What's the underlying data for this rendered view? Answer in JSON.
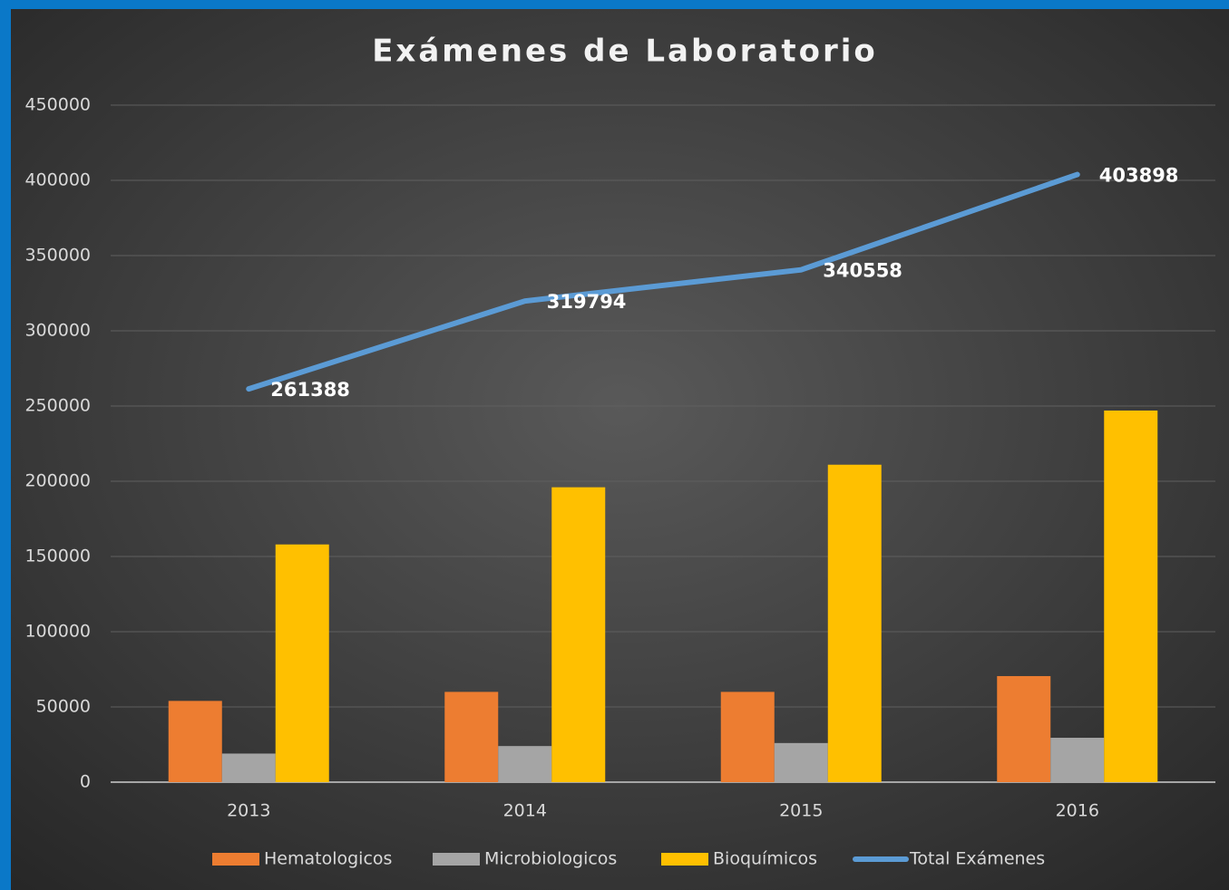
{
  "chart_data": {
    "type": "bar",
    "title": "Exámenes de Laboratorio",
    "categories": [
      "2013",
      "2014",
      "2015",
      "2016"
    ],
    "series": [
      {
        "name": "Hematologicos",
        "color": "#ed7d31",
        "values": [
          54000,
          60000,
          60000,
          70500
        ]
      },
      {
        "name": "Microbiologicos",
        "color": "#a5a5a5",
        "values": [
          19000,
          24000,
          26000,
          29500
        ]
      },
      {
        "name": "Bioquímicos",
        "color": "#ffc000",
        "values": [
          158000,
          196000,
          211000,
          247000
        ]
      },
      {
        "name": "Total Exámenes",
        "type": "line",
        "color": "#5b9bd5",
        "values": [
          261388,
          319794,
          340558,
          403898
        ]
      }
    ],
    "ylim": [
      0,
      450000
    ],
    "yticks": [
      0,
      50000,
      100000,
      150000,
      200000,
      250000,
      300000,
      350000,
      400000,
      450000
    ],
    "grid": true,
    "legend": "bottom"
  }
}
